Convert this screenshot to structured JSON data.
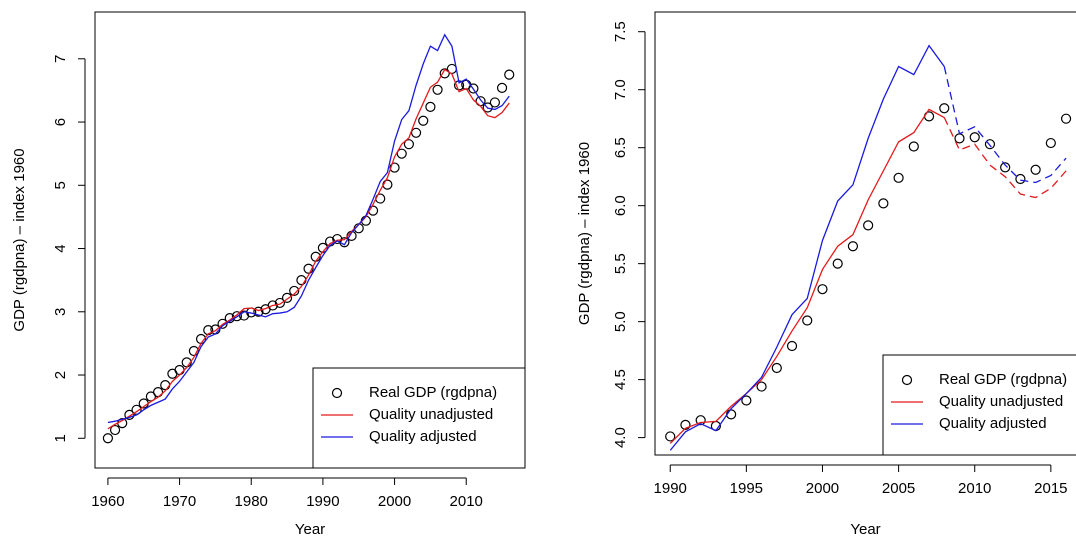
{
  "chart_data": [
    {
      "type": "line",
      "x_label": "Year",
      "y_label": "GDP (rgdpna) – index 1960",
      "x": [
        1960,
        1961,
        1962,
        1963,
        1964,
        1965,
        1966,
        1967,
        1968,
        1969,
        1970,
        1971,
        1972,
        1973,
        1974,
        1975,
        1976,
        1977,
        1978,
        1979,
        1980,
        1981,
        1982,
        1983,
        1984,
        1985,
        1986,
        1987,
        1988,
        1989,
        1990,
        1991,
        1992,
        1993,
        1994,
        1995,
        1996,
        1997,
        1998,
        1999,
        2000,
        2001,
        2002,
        2003,
        2004,
        2005,
        2006,
        2007,
        2008,
        2009,
        2010,
        2011,
        2012,
        2013,
        2014,
        2015,
        2016
      ],
      "series": [
        {
          "name": "Real GDP (rgdpna)",
          "marker": "circle",
          "color": "#000000",
          "values": [
            1.0,
            1.13,
            1.24,
            1.37,
            1.45,
            1.55,
            1.66,
            1.73,
            1.84,
            2.02,
            2.08,
            2.2,
            2.38,
            2.57,
            2.71,
            2.72,
            2.81,
            2.9,
            2.93,
            2.94,
            2.99,
            3.0,
            3.04,
            3.1,
            3.14,
            3.22,
            3.33,
            3.5,
            3.68,
            3.87,
            4.01,
            4.11,
            4.15,
            4.1,
            4.2,
            4.32,
            4.44,
            4.6,
            4.79,
            5.01,
            5.28,
            5.5,
            5.65,
            5.83,
            6.02,
            6.24,
            6.51,
            6.77,
            6.84,
            6.58,
            6.59,
            6.53,
            6.33,
            6.23,
            6.31,
            6.54,
            6.75
          ]
        },
        {
          "name": "Quality unadjusted",
          "marker": "line",
          "color": "#e41a1c",
          "values": [
            1.15,
            1.22,
            1.28,
            1.35,
            1.42,
            1.5,
            1.58,
            1.65,
            1.75,
            1.9,
            2.0,
            2.12,
            2.28,
            2.5,
            2.65,
            2.7,
            2.8,
            2.87,
            2.95,
            3.05,
            3.06,
            3.02,
            3.05,
            3.1,
            3.12,
            3.2,
            3.28,
            3.4,
            3.58,
            3.8,
            3.95,
            4.08,
            4.13,
            4.14,
            4.27,
            4.38,
            4.5,
            4.7,
            4.92,
            5.12,
            5.45,
            5.65,
            5.75,
            6.05,
            6.3,
            6.55,
            6.63,
            6.83,
            6.76,
            6.48,
            6.53,
            6.35,
            6.25,
            6.1,
            6.07,
            6.15,
            6.3
          ]
        },
        {
          "name": "Quality adjusted",
          "marker": "line",
          "color": "#1a1ae0",
          "values": [
            1.25,
            1.27,
            1.3,
            1.33,
            1.37,
            1.45,
            1.52,
            1.57,
            1.62,
            1.78,
            1.9,
            2.05,
            2.2,
            2.45,
            2.6,
            2.65,
            2.78,
            2.85,
            2.92,
            3.0,
            2.98,
            2.95,
            2.92,
            2.97,
            2.98,
            3.0,
            3.07,
            3.25,
            3.5,
            3.7,
            3.89,
            4.05,
            4.12,
            4.06,
            4.25,
            4.38,
            4.52,
            4.78,
            5.06,
            5.2,
            5.7,
            6.04,
            6.18,
            6.58,
            6.92,
            7.2,
            7.13,
            7.38,
            7.2,
            6.62,
            6.68,
            6.52,
            6.35,
            6.22,
            6.2,
            6.26,
            6.41
          ]
        }
      ],
      "xlim": [
        1958.2,
        2018.2
      ],
      "ylim": [
        0.53,
        7.74
      ],
      "xticks": [
        1960,
        1970,
        1980,
        1990,
        2000,
        2010
      ],
      "yticks": [
        1,
        2,
        3,
        4,
        5,
        6,
        7
      ],
      "legend": "bottomright"
    },
    {
      "type": "line",
      "x_label": "Year",
      "y_label": "GDP (rgdpna) – index 1960",
      "dash_from": 2008,
      "x": [
        1990,
        1991,
        1992,
        1993,
        1994,
        1995,
        1996,
        1997,
        1998,
        1999,
        2000,
        2001,
        2002,
        2003,
        2004,
        2005,
        2006,
        2007,
        2008,
        2009,
        2010,
        2011,
        2012,
        2013,
        2014,
        2015,
        2016
      ],
      "series": [
        {
          "name": "Real GDP (rgdpna)",
          "marker": "circle",
          "color": "#000000",
          "values": [
            4.01,
            4.11,
            4.15,
            4.1,
            4.2,
            4.32,
            4.44,
            4.6,
            4.79,
            5.01,
            5.28,
            5.5,
            5.65,
            5.83,
            6.02,
            6.24,
            6.51,
            6.77,
            6.84,
            6.58,
            6.59,
            6.53,
            6.33,
            6.23,
            6.31,
            6.54,
            6.75
          ]
        },
        {
          "name": "Quality unadjusted",
          "marker": "line",
          "color": "#e41a1c",
          "values": [
            3.95,
            4.08,
            4.13,
            4.14,
            4.27,
            4.38,
            4.5,
            4.7,
            4.92,
            5.12,
            5.45,
            5.65,
            5.75,
            6.05,
            6.3,
            6.55,
            6.63,
            6.83,
            6.76,
            6.48,
            6.53,
            6.35,
            6.25,
            6.1,
            6.07,
            6.15,
            6.3
          ]
        },
        {
          "name": "Quality adjusted",
          "marker": "line",
          "color": "#1a1ae0",
          "values": [
            3.89,
            4.05,
            4.12,
            4.06,
            4.25,
            4.38,
            4.52,
            4.78,
            5.06,
            5.2,
            5.7,
            6.04,
            6.18,
            6.58,
            6.92,
            7.2,
            7.13,
            7.38,
            7.2,
            6.62,
            6.68,
            6.52,
            6.35,
            6.22,
            6.2,
            6.26,
            6.41
          ]
        }
      ],
      "xlim": [
        1989,
        2017.9
      ],
      "ylim": [
        3.85,
        7.67
      ],
      "xticks": [
        1990,
        1995,
        2000,
        2005,
        2010,
        2015
      ],
      "yticks": [
        {
          "value": 4,
          "label": "4.0"
        },
        4.5,
        {
          "value": 5,
          "label": "5.0"
        },
        5.5,
        {
          "value": 6,
          "label": "6.0"
        },
        6.5,
        {
          "value": 7,
          "label": "7.0"
        },
        7.5
      ],
      "legend": "bottomright"
    }
  ]
}
